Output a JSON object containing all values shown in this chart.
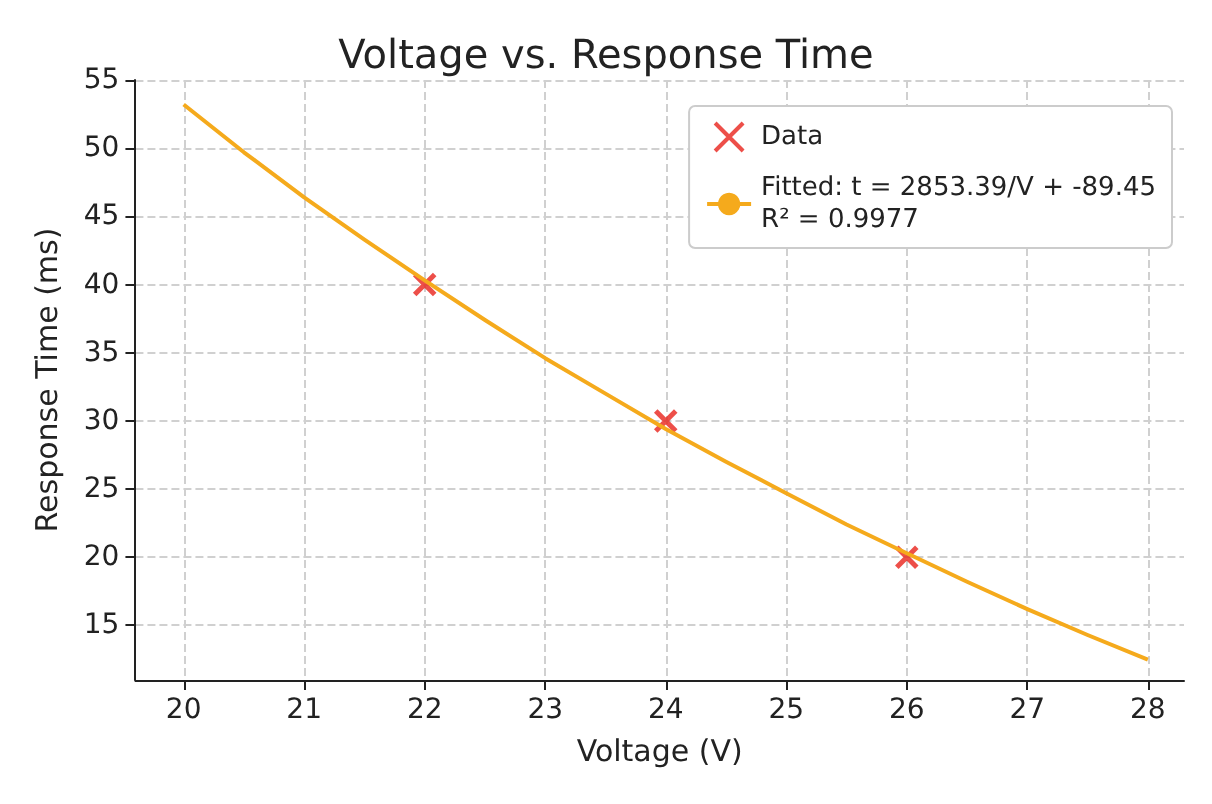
{
  "chart_data": {
    "type": "scatter",
    "title": "Voltage vs. Response Time",
    "xlabel": "Voltage (V)",
    "ylabel": "Response Time (ms)",
    "xlim": [
      19.6,
      28.3
    ],
    "xticks": [
      20,
      21,
      22,
      23,
      24,
      25,
      26,
      27,
      28
    ],
    "ylim": [
      11,
      55
    ],
    "yticks": [
      15,
      20,
      25,
      30,
      35,
      40,
      45,
      50,
      55
    ],
    "grid": true,
    "legend": "top right",
    "series": [
      {
        "name": "Data",
        "type": "scatter",
        "marker": "cross",
        "color": "#e8231c",
        "x": [
          22,
          24,
          26
        ],
        "values": [
          40,
          30,
          20
        ]
      },
      {
        "name": "Fitted: t = 2853.39/V + -89.45\nR² = 0.9977",
        "type": "line",
        "marker": "none",
        "line_style": "solid",
        "color": "#f5aa1c",
        "x": [
          20,
          20.5,
          21,
          21.5,
          22,
          22.5,
          23,
          23.5,
          24,
          24.5,
          25,
          25.5,
          26,
          26.5,
          27,
          27.5,
          28
        ],
        "values": [
          53.2,
          49.7,
          46.4,
          43.3,
          40.3,
          37.4,
          34.6,
          32.0,
          29.4,
          27.0,
          24.7,
          22.4,
          20.3,
          18.2,
          16.2,
          14.3,
          12.5
        ]
      }
    ]
  }
}
